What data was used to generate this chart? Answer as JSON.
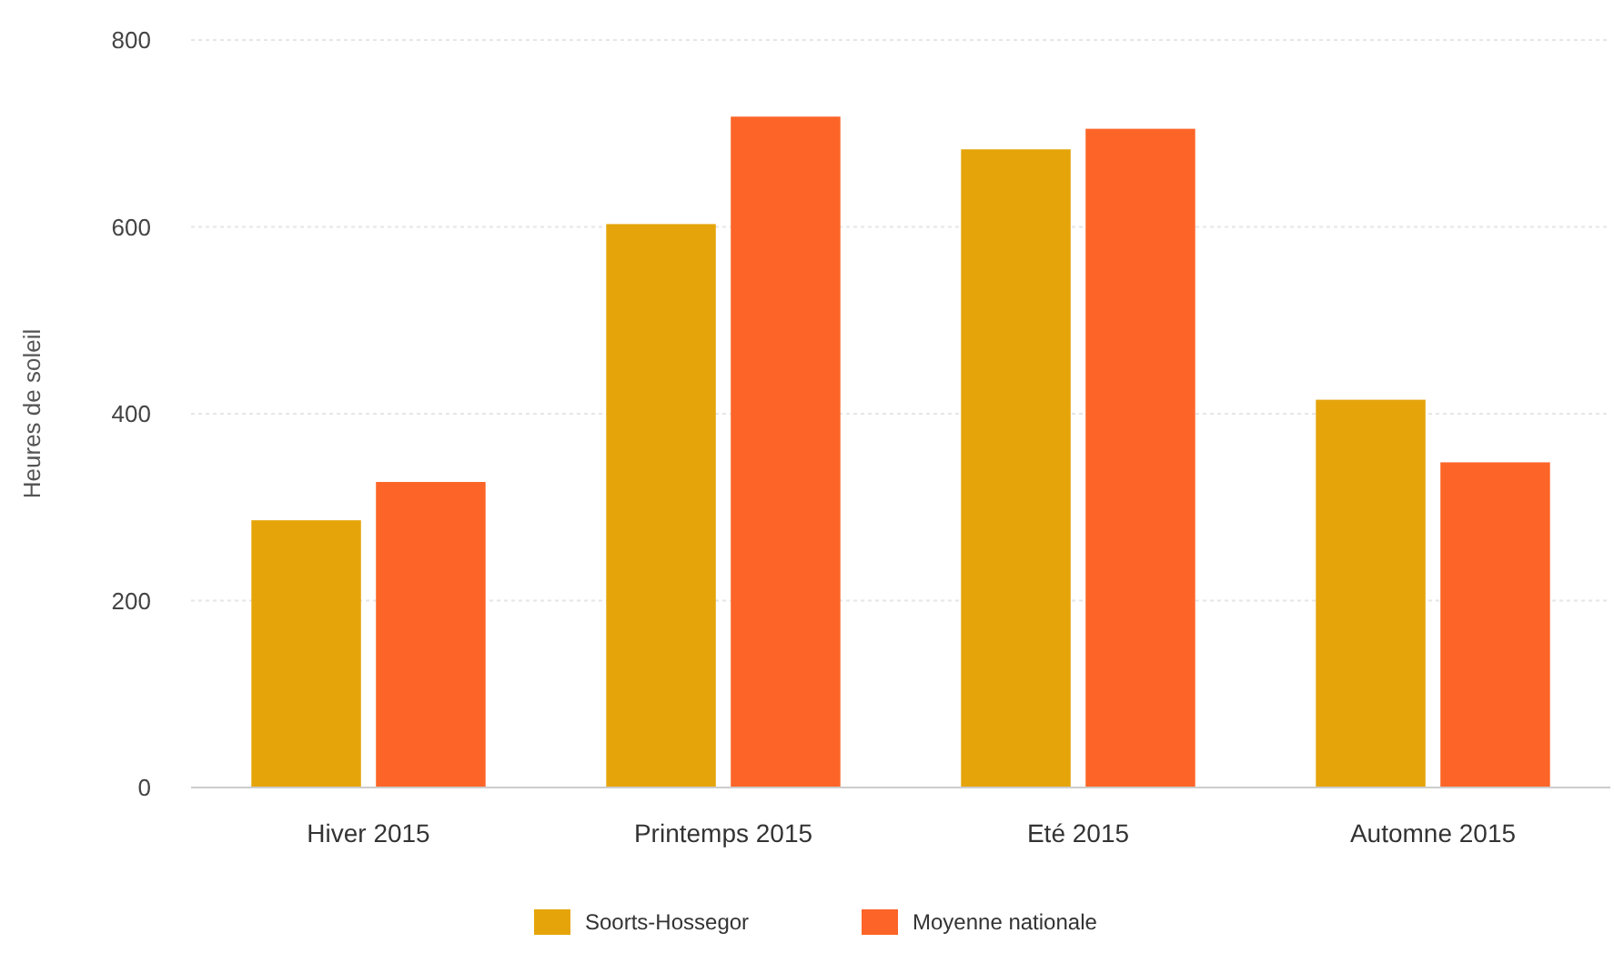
{
  "chart_data": {
    "type": "bar",
    "ylabel": "Heures de soleil",
    "categories": [
      "Hiver 2015",
      "Printemps 2015",
      "Eté 2015",
      "Automne 2015"
    ],
    "series": [
      {
        "name": "Soorts-Hossegor",
        "color": "#e5a50a",
        "values": [
          286,
          603,
          683,
          415
        ]
      },
      {
        "name": "Moyenne nationale",
        "color": "#fd6528",
        "values": [
          327,
          718,
          705,
          348
        ]
      }
    ],
    "ylim": [
      0,
      800
    ],
    "yticks": [
      0,
      200,
      400,
      600,
      800
    ],
    "grid": "y",
    "legend": "bottom"
  }
}
